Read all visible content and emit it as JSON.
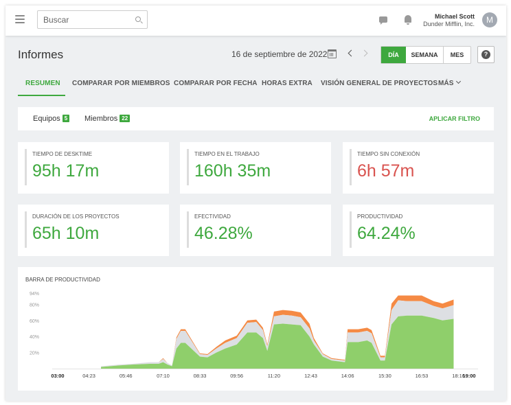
{
  "header": {
    "search_placeholder": "Buscar",
    "user_name": "Michael Scott",
    "user_org": "Dunder Mifflin, Inc.",
    "avatar_initial": "M"
  },
  "page": {
    "title": "Informes",
    "date": "16 de septiembre de 2022",
    "ranges": [
      "DÍA",
      "SEMANA",
      "MES"
    ],
    "active_range": "DÍA",
    "help": "?"
  },
  "tabs": [
    "RESUMEN",
    "COMPARAR POR MIEMBROS",
    "COMPARAR POR FECHA",
    "HORAS EXTRA",
    "VISIÓN GENERAL DE PROYECTOS",
    "MÁS"
  ],
  "filter": {
    "teams_label": "Equipos",
    "teams_count": "5",
    "members_label": "Miembros",
    "members_count": "22",
    "apply_label": "APLICAR FILTRO"
  },
  "stats": [
    {
      "label": "TIEMPO DE DESKTIME",
      "value": "95h 17m",
      "color": "#3ea83e"
    },
    {
      "label": "TIEMPO EN EL TRABAJO",
      "value": "160h 35m",
      "color": "#3ea83e"
    },
    {
      "label": "TIEMPO SIN CONEXIÓN",
      "value": "6h 57m",
      "color": "#d9534f"
    },
    {
      "label": "DURACIÓN DE LOS PROYECTOS",
      "value": "65h 10m",
      "color": "#3ea83e"
    },
    {
      "label": "EFECTIVIDAD",
      "value": "46.28%",
      "color": "#3ea83e"
    },
    {
      "label": "PRODUCTIVIDAD",
      "value": "64.24%",
      "color": "#3ea83e"
    }
  ],
  "chart_data": {
    "type": "area",
    "title": "BARRA DE PRODUCTIVIDAD",
    "y_ticks": [
      "94%",
      "80%",
      "60%",
      "40%",
      "20%"
    ],
    "x_ticks": [
      "03:00",
      "04:23",
      "05:46",
      "07:10",
      "08:33",
      "09:56",
      "11:20",
      "12:43",
      "14:06",
      "15:30",
      "16:53",
      "18:16",
      "19:00"
    ],
    "colors": {
      "productive": "#8fcf6b",
      "neutral": "#dddfe3",
      "unproductive": "#f58a44"
    },
    "x": [
      "04:50",
      "05:30",
      "06:00",
      "06:40",
      "07:00",
      "07:10",
      "07:20",
      "07:30",
      "07:40",
      "07:50",
      "08:00",
      "08:33",
      "08:50",
      "09:10",
      "09:30",
      "09:56",
      "10:20",
      "10:40",
      "10:55",
      "11:05",
      "11:20",
      "11:40",
      "12:00",
      "12:20",
      "12:40",
      "12:50",
      "13:10",
      "13:30",
      "14:00",
      "14:06",
      "14:30",
      "14:50",
      "15:00",
      "15:20",
      "15:30",
      "15:45",
      "16:00",
      "16:20",
      "16:53",
      "17:20",
      "17:40",
      "18:05"
    ],
    "series": [
      {
        "name": "productive",
        "values": [
          2,
          4,
          5,
          6,
          6,
          8,
          5,
          3,
          25,
          32,
          32,
          15,
          14,
          20,
          25,
          30,
          45,
          45,
          38,
          22,
          55,
          56,
          55,
          54,
          40,
          30,
          15,
          10,
          8,
          33,
          33,
          35,
          32,
          10,
          10,
          55,
          65,
          66,
          66,
          63,
          60,
          62
        ]
      },
      {
        "name": "neutral",
        "values": [
          1,
          1,
          1,
          2,
          2,
          4,
          2,
          1,
          12,
          15,
          15,
          3,
          3,
          5,
          7,
          8,
          12,
          13,
          10,
          6,
          10,
          11,
          11,
          10,
          10,
          5,
          3,
          2,
          2,
          12,
          12,
          12,
          12,
          4,
          4,
          18,
          20,
          18,
          18,
          15,
          15,
          17
        ]
      },
      {
        "name": "unproductive",
        "values": [
          0,
          0,
          0,
          0,
          0,
          1,
          0,
          0,
          2,
          2,
          2,
          1,
          1,
          2,
          3,
          3,
          3,
          3,
          3,
          2,
          6,
          6,
          6,
          6,
          6,
          3,
          1,
          1,
          1,
          4,
          4,
          4,
          4,
          2,
          2,
          8,
          6,
          7,
          7,
          6,
          6,
          7
        ]
      }
    ],
    "ylim": [
      0,
      94
    ]
  }
}
